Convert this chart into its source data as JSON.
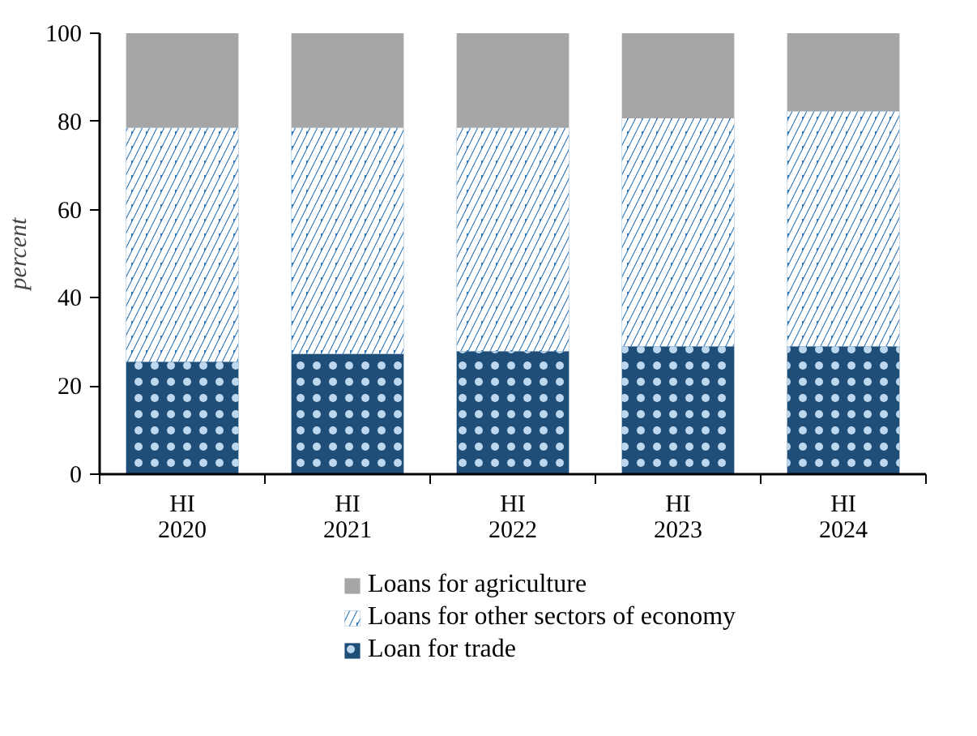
{
  "chart_data": {
    "type": "bar",
    "stacked": true,
    "ylabel": "percent",
    "categories": [
      "HI\n2020",
      "HI\n2021",
      "HI\n2022",
      "HI\n2023",
      "HI\n2024"
    ],
    "ylim": [
      0,
      100
    ],
    "yticks": [
      0,
      20,
      40,
      60,
      80,
      100
    ],
    "grid": false,
    "legend": "bottom",
    "series": [
      {
        "name": "Loan for trade",
        "color": "#1f4e79",
        "values": [
          25.5,
          27.3,
          27.9,
          29.0,
          29.0
        ]
      },
      {
        "name": "Loans for other sectors of economy",
        "color": "#2e75b6",
        "values": [
          53.1,
          51.3,
          50.7,
          51.7,
          53.3
        ]
      },
      {
        "name": "Loans for agriculture",
        "color": "#a6a6a6",
        "values": [
          21.4,
          21.4,
          21.4,
          19.3,
          17.7
        ]
      }
    ]
  }
}
